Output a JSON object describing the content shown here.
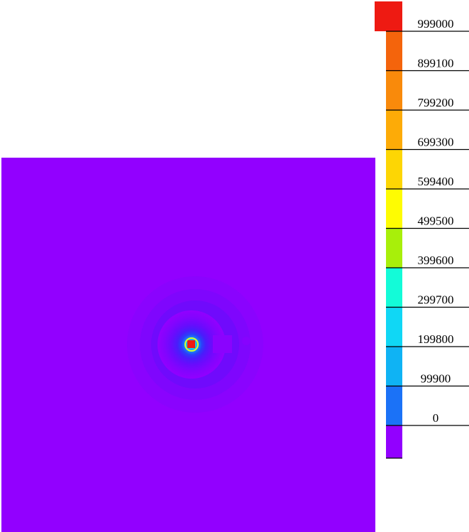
{
  "chart_data": {
    "type": "heatmap",
    "title": "",
    "xlabel": "",
    "ylabel": "",
    "colorbar": {
      "placement": "right",
      "levels": [
        {
          "label": "999000",
          "color": "#ee1a12"
        },
        {
          "label": "899100",
          "color": "#f4640c"
        },
        {
          "label": "799200",
          "color": "#f98a0b"
        },
        {
          "label": "699300",
          "color": "#fdab07"
        },
        {
          "label": "599400",
          "color": "#fdd604"
        },
        {
          "label": "499500",
          "color": "#fefc02"
        },
        {
          "label": "399600",
          "color": "#a8ef0a"
        },
        {
          "label": "299700",
          "color": "#13fbd8"
        },
        {
          "label": "199800",
          "color": "#10d7f5"
        },
        {
          "label": "99900",
          "color": "#0fb3f4"
        },
        {
          "label": "0",
          "color": "#1b72f7"
        },
        {
          "label": "",
          "color": "#9200ff"
        }
      ]
    },
    "field": {
      "background_color": "#9200ff",
      "peak_value": 999000,
      "background_value": 0,
      "features": [
        {
          "kind": "point-source",
          "value": 999000
        },
        {
          "kind": "square-patch",
          "value": 0
        },
        {
          "kind": "small-circle",
          "value": 0
        }
      ]
    }
  }
}
